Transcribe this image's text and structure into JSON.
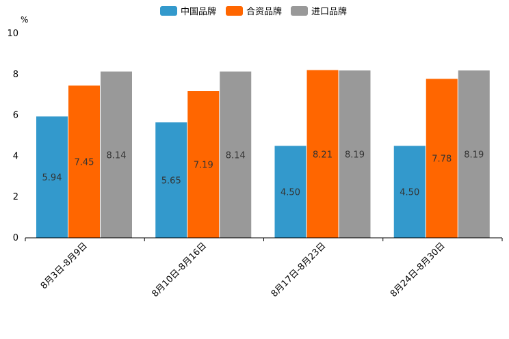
{
  "chart_data": {
    "type": "bar",
    "title": "",
    "xlabel": "",
    "ylabel": "%",
    "ylim": [
      0,
      10
    ],
    "yticks": [
      0,
      2,
      4,
      6,
      8,
      10
    ],
    "grid": false,
    "legend_position": "top-center",
    "categories": [
      "8月3日-8月9日",
      "8月10日-8月16日",
      "8月17日-8月23日",
      "8月24日-8月30日"
    ],
    "series": [
      {
        "name": "中国品牌",
        "color": "#3399cc",
        "values": [
          5.94,
          5.65,
          4.5,
          4.5
        ],
        "labels": [
          "5.94",
          "5.65",
          "4.50",
          "4.50"
        ]
      },
      {
        "name": "合资品牌",
        "color": "#ff6600",
        "values": [
          7.45,
          7.19,
          8.21,
          7.78
        ],
        "labels": [
          "7.45",
          "7.19",
          "8.21",
          "7.78"
        ]
      },
      {
        "name": "进口品牌",
        "color": "#999999",
        "values": [
          8.14,
          8.14,
          8.19,
          8.19
        ],
        "labels": [
          "8.14",
          "8.14",
          "8.19",
          "8.19"
        ]
      }
    ]
  }
}
